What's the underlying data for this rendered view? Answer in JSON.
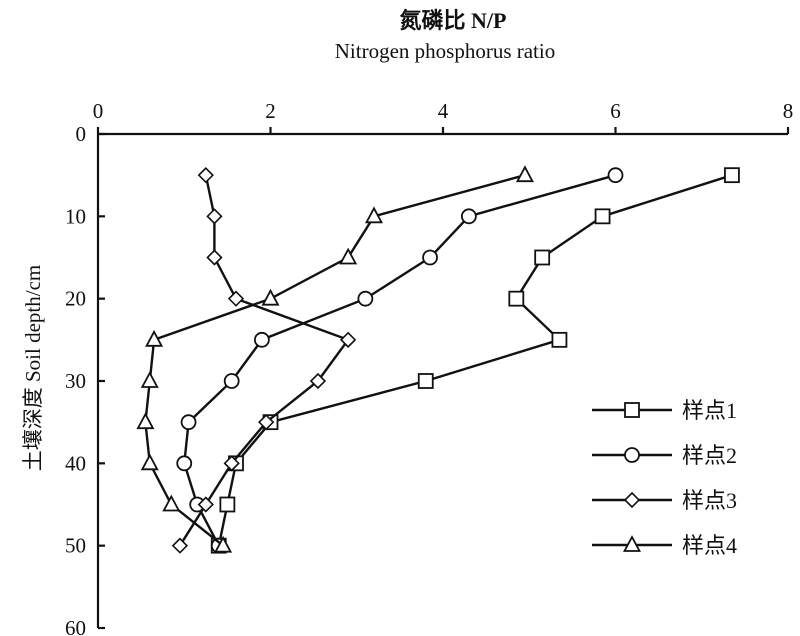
{
  "chart_data": {
    "type": "line",
    "title": "氮磷比 N/P",
    "subtitle": "Nitrogen phosphorus ratio",
    "xlabel": "氮磷比 N/P",
    "ylabel": "土壤深度 Soil depth/cm",
    "xlim": [
      0,
      8
    ],
    "ylim": [
      0,
      60
    ],
    "x_axis_position": "top",
    "y_inverted": true,
    "xticks": [
      0,
      2,
      4,
      6,
      8
    ],
    "yticks": [
      0,
      10,
      20,
      30,
      40,
      50,
      60
    ],
    "grid": false,
    "legend_position": "bottom-right",
    "series": [
      {
        "name": "样点1",
        "marker": "square",
        "x": [
          7.35,
          5.85,
          5.15,
          4.85,
          5.35,
          3.8,
          2.0,
          1.6,
          1.5,
          1.4
        ],
        "y": [
          5,
          10,
          15,
          20,
          25,
          30,
          35,
          40,
          45,
          50
        ]
      },
      {
        "name": "样点2",
        "marker": "circle",
        "x": [
          6.0,
          4.3,
          3.85,
          3.1,
          1.9,
          1.55,
          1.05,
          1.0,
          1.15,
          1.4
        ],
        "y": [
          5,
          10,
          15,
          20,
          25,
          30,
          35,
          40,
          45,
          50
        ]
      },
      {
        "name": "样点3",
        "marker": "diamond",
        "x": [
          1.25,
          1.35,
          1.35,
          1.6,
          2.9,
          2.55,
          1.95,
          1.55,
          1.25,
          0.95
        ],
        "y": [
          5,
          10,
          15,
          20,
          25,
          30,
          35,
          40,
          45,
          50
        ]
      },
      {
        "name": "样点4",
        "marker": "triangle",
        "x": [
          4.95,
          3.2,
          2.9,
          2.0,
          0.65,
          0.6,
          0.55,
          0.6,
          0.85,
          1.45
        ],
        "y": [
          5,
          10,
          15,
          20,
          25,
          30,
          35,
          40,
          45,
          50
        ]
      }
    ]
  }
}
